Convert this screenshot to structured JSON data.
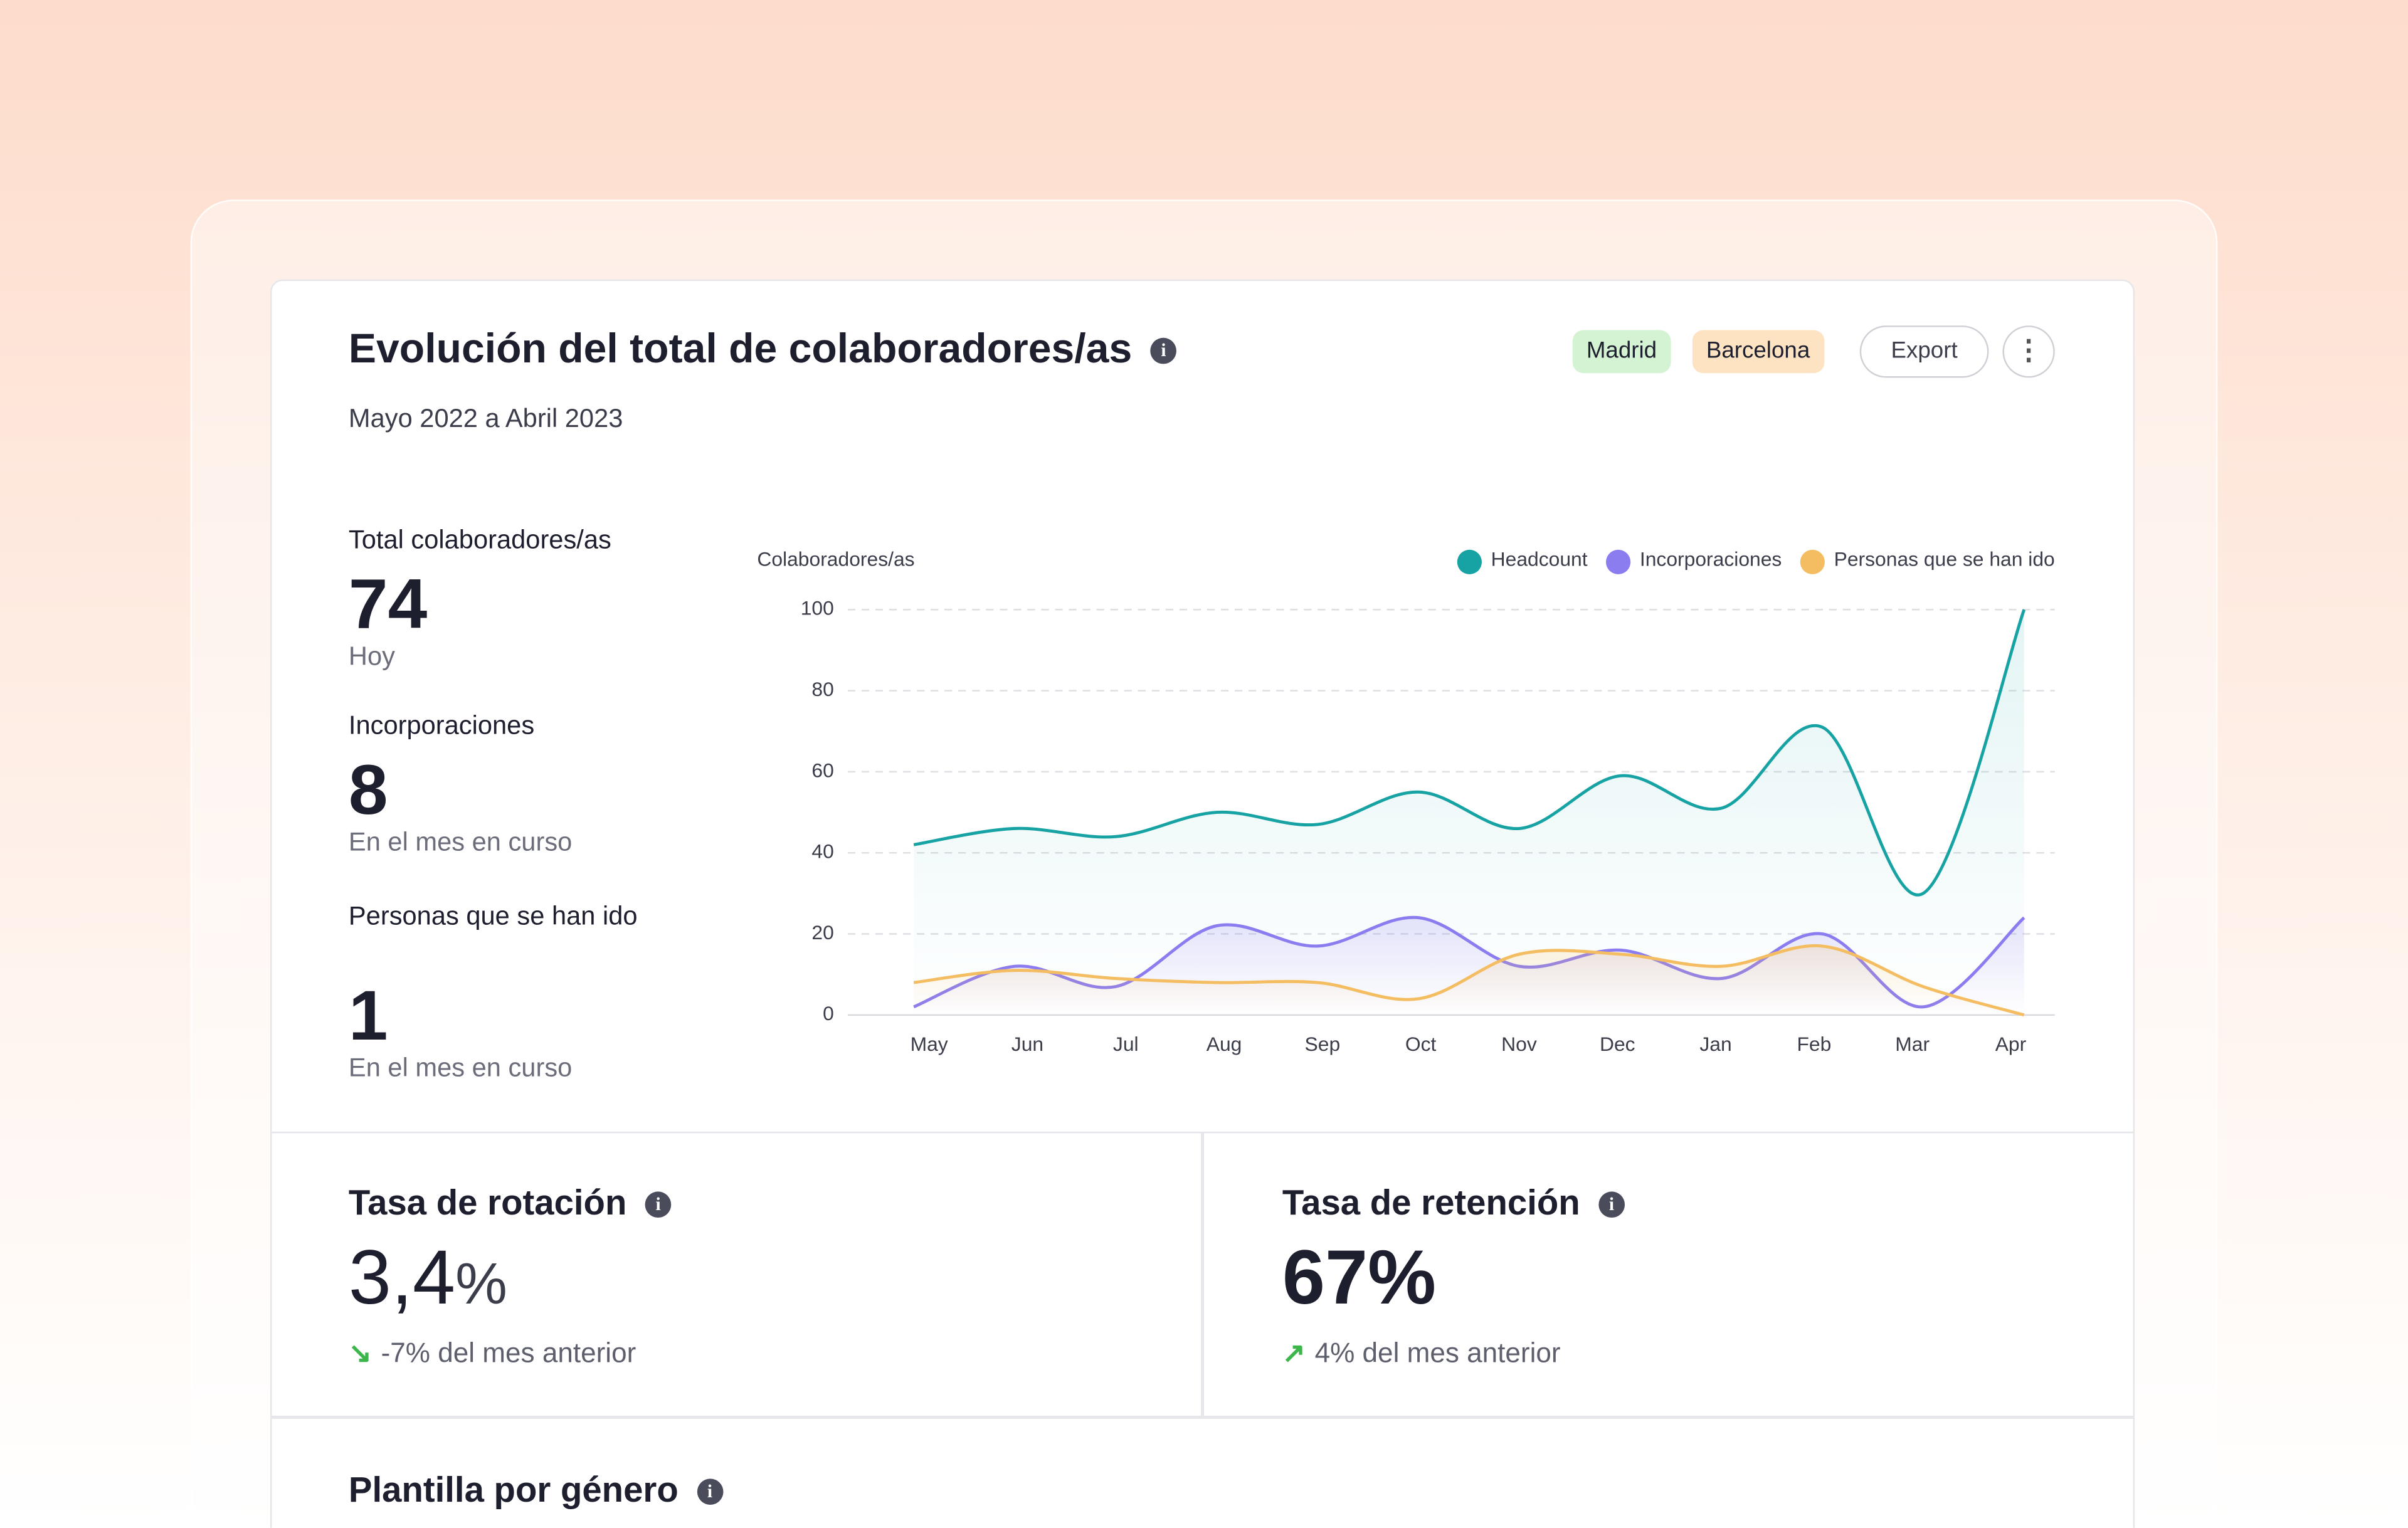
{
  "header": {
    "title": "Evolución del total de colaboradores/as",
    "subtitle": "Mayo 2022 a Abril 2023",
    "tags": [
      "Madrid",
      "Barcelona"
    ],
    "button": "Export"
  },
  "kpis": [
    {
      "label": "Total colaboradores/as",
      "value": "74",
      "note": "Hoy"
    },
    {
      "label": "Incorporaciones",
      "value": "8",
      "note": "En el mes en curso"
    },
    {
      "label": "Personas que se han ido",
      "value": "1",
      "note": "En el mes en curso"
    }
  ],
  "cards": [
    {
      "title": "Tasa de rotación",
      "value": "3,4",
      "unit": "%",
      "change": "-7% del mes anterior"
    },
    {
      "title": "Tasa de retención",
      "value": "67%",
      "change": "4% del mes anterior"
    },
    {
      "title": "Plantilla por género"
    }
  ],
  "chart_data": {
    "type": "line",
    "y_label": "Colaboradores/as",
    "categories": [
      "May",
      "Jun",
      "Jul",
      "Aug",
      "Sep",
      "Oct",
      "Nov",
      "Dec",
      "Jan",
      "Feb",
      "Mar",
      "Apr"
    ],
    "series": [
      {
        "name": "Headcount",
        "color": "#17a2a4",
        "values": [
          42,
          46,
          44,
          50,
          47,
          55,
          46,
          59,
          51,
          71,
          30,
          100
        ]
      },
      {
        "name": "Incorporaciones",
        "color": "#8b7cf0",
        "values": [
          2,
          12,
          7,
          22,
          17,
          24,
          12,
          16,
          9,
          20,
          2,
          24
        ]
      },
      {
        "name": "Personas que se han ido",
        "color": "#f5bd62",
        "values": [
          8,
          11,
          9,
          8,
          8,
          4,
          15,
          15,
          12,
          17,
          7,
          0
        ]
      }
    ],
    "ylim": [
      0,
      100
    ],
    "yticks": [
      0,
      20,
      40,
      60,
      80,
      100
    ],
    "grid": true,
    "legend": "top-right"
  }
}
